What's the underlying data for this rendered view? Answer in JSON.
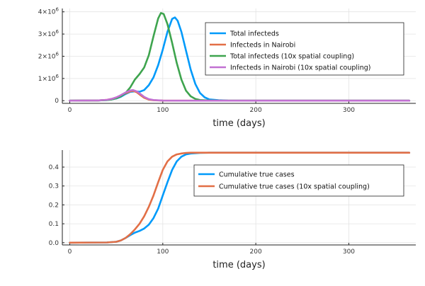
{
  "chart_data": [
    {
      "type": "line",
      "xlabel": "time (days)",
      "ylabel": "",
      "xlim": [
        -8,
        372
      ],
      "ylim": [
        -0.12,
        4.15
      ],
      "xticks": [
        0,
        100,
        200,
        300
      ],
      "xtick_labels": [
        "0",
        "100",
        "200",
        "300"
      ],
      "yticks": [
        0,
        1,
        2,
        3,
        4
      ],
      "ytick_base": [
        "0",
        "1×10",
        "2×10",
        "3×10",
        "4×10"
      ],
      "ytick_exp": [
        "",
        "6",
        "6",
        "6",
        "6"
      ],
      "grid": true,
      "legend_position": "top-right",
      "series": [
        {
          "name": "Total infecteds",
          "color": "#009AFA",
          "x": [
            0,
            30,
            40,
            45,
            50,
            55,
            60,
            65,
            70,
            75,
            80,
            85,
            90,
            95,
            100,
            105,
            110,
            113,
            116,
            120,
            125,
            130,
            135,
            140,
            145,
            150,
            160,
            170,
            200,
            365
          ],
          "y": [
            0,
            0.01,
            0.03,
            0.06,
            0.1,
            0.18,
            0.3,
            0.4,
            0.42,
            0.4,
            0.48,
            0.7,
            1.05,
            1.6,
            2.3,
            3.1,
            3.68,
            3.75,
            3.6,
            3.1,
            2.25,
            1.4,
            0.75,
            0.35,
            0.15,
            0.06,
            0.02,
            0.005,
            0,
            0
          ]
        },
        {
          "name": "Infecteds in Nairobi",
          "color": "#E26F46",
          "x": [
            0,
            30,
            40,
            45,
            50,
            55,
            60,
            65,
            68,
            72,
            75,
            80,
            85,
            90,
            100,
            120,
            365
          ],
          "y": [
            0,
            0.01,
            0.04,
            0.08,
            0.14,
            0.23,
            0.33,
            0.42,
            0.44,
            0.38,
            0.28,
            0.13,
            0.05,
            0.02,
            0.005,
            0,
            0
          ]
        },
        {
          "name": "Total infecteds (10x spatial coupling)",
          "color": "#3EA44E",
          "x": [
            0,
            30,
            40,
            45,
            50,
            55,
            60,
            65,
            70,
            75,
            80,
            85,
            90,
            95,
            98,
            101,
            105,
            110,
            115,
            120,
            125,
            130,
            135,
            140,
            150,
            160,
            200,
            365
          ],
          "y": [
            0,
            0.01,
            0.03,
            0.06,
            0.11,
            0.2,
            0.35,
            0.6,
            0.95,
            1.2,
            1.5,
            2.05,
            2.9,
            3.7,
            3.95,
            3.9,
            3.45,
            2.6,
            1.7,
            0.95,
            0.45,
            0.2,
            0.08,
            0.03,
            0.01,
            0,
            0,
            0
          ]
        },
        {
          "name": "Infecteds in Nairobi (10x spatial coupling)",
          "color": "#C271D2",
          "x": [
            0,
            30,
            40,
            45,
            50,
            55,
            60,
            65,
            68,
            72,
            76,
            80,
            85,
            90,
            100,
            120,
            365
          ],
          "y": [
            0,
            0.01,
            0.04,
            0.08,
            0.15,
            0.25,
            0.37,
            0.46,
            0.48,
            0.42,
            0.3,
            0.17,
            0.07,
            0.03,
            0.005,
            0,
            0
          ]
        }
      ]
    },
    {
      "type": "line",
      "xlabel": "time (days)",
      "ylabel": "",
      "xlim": [
        -8,
        372
      ],
      "ylim": [
        -0.012,
        0.49
      ],
      "xticks": [
        0,
        100,
        200,
        300
      ],
      "xtick_labels": [
        "0",
        "100",
        "200",
        "300"
      ],
      "yticks": [
        0,
        0.1,
        0.2,
        0.3,
        0.4
      ],
      "ytick_labels": [
        "0.0",
        "0.1",
        "0.2",
        "0.3",
        "0.4"
      ],
      "grid": true,
      "legend_position": "right",
      "series": [
        {
          "name": "Cumulative true cases",
          "color": "#009AFA",
          "x": [
            0,
            40,
            50,
            55,
            60,
            65,
            70,
            75,
            80,
            85,
            90,
            95,
            100,
            105,
            110,
            115,
            120,
            125,
            130,
            140,
            150,
            365
          ],
          "y": [
            0,
            0.001,
            0.005,
            0.012,
            0.025,
            0.04,
            0.053,
            0.062,
            0.075,
            0.095,
            0.13,
            0.18,
            0.25,
            0.32,
            0.385,
            0.43,
            0.455,
            0.467,
            0.472,
            0.475,
            0.476,
            0.476
          ]
        },
        {
          "name": "Cumulative true cases (10x spatial coupling)",
          "color": "#E26F46",
          "x": [
            0,
            40,
            50,
            55,
            60,
            65,
            70,
            75,
            80,
            85,
            90,
            95,
            100,
            105,
            110,
            115,
            120,
            125,
            130,
            140,
            365
          ],
          "y": [
            0,
            0.001,
            0.005,
            0.012,
            0.025,
            0.045,
            0.07,
            0.1,
            0.14,
            0.19,
            0.25,
            0.32,
            0.385,
            0.43,
            0.455,
            0.467,
            0.472,
            0.475,
            0.476,
            0.476,
            0.476
          ]
        }
      ]
    }
  ]
}
